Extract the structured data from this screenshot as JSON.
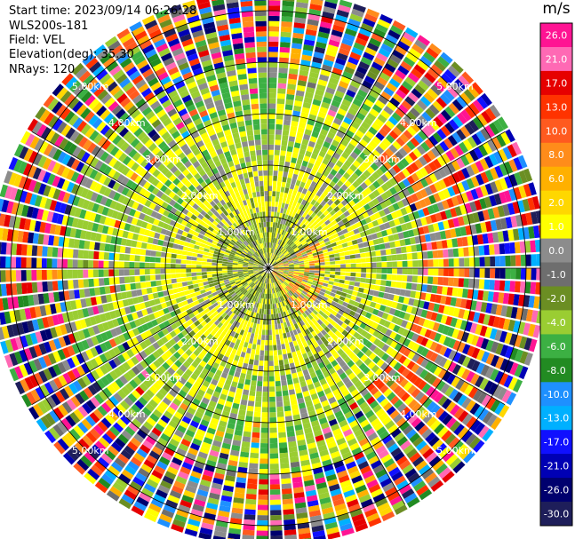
{
  "header": {
    "start_time": "Start time: 2023/09/14 06:26:28",
    "instrument": "WLS200s-181",
    "field": "Field: VEL",
    "elevation": "Elevation(deg): 35.30",
    "nrays": "NRays: 120"
  },
  "colorbar": {
    "unit": "m/s",
    "ticks": [
      "26.0",
      "21.0",
      "17.0",
      "13.0",
      "10.0",
      "8.0",
      "6.0",
      "2.0",
      "1.0",
      "0.0",
      "-1.0",
      "-2.0",
      "-4.0",
      "-6.0",
      "-8.0",
      "-10.0",
      "-13.0",
      "-17.0",
      "-21.0",
      "-26.0",
      "-30.0"
    ],
    "colors": [
      "#ff1493",
      "#ff69b4",
      "#e60000",
      "#ff3300",
      "#ff5a1f",
      "#ff8c1a",
      "#ffb000",
      "#ffd700",
      "#ffff00",
      "#8c8c8c",
      "#6e6e6e",
      "#6b8e23",
      "#9acd32",
      "#3cb043",
      "#228b22",
      "#1e90ff",
      "#00b0ff",
      "#1010ff",
      "#0000b4",
      "#00006e",
      "#1e1e5a"
    ]
  },
  "chart_data": {
    "type": "ppi",
    "field": "VEL",
    "units": "m/s",
    "n_rays": 120,
    "elevation_deg": 35.3,
    "range_rings_km": [
      1,
      2,
      3,
      4,
      5
    ],
    "ring_labels": [
      "1.00km",
      "2.00km",
      "3.00km",
      "4.00km",
      "5.00km"
    ],
    "vmin": -30,
    "vmax": 26,
    "pattern": [
      {
        "range_km": [
          0,
          1
        ],
        "description": "mixed olive / yellow near-zero velocities",
        "dominant": [
          "#6b8e23",
          "#ffff00",
          "#8c8c8c"
        ]
      },
      {
        "range_km": [
          1,
          2
        ],
        "description": "yellow positive ring with gray and olive",
        "dominant": [
          "#ffff00",
          "#8c8c8c",
          "#9acd32"
        ]
      },
      {
        "range_km": [
          2,
          3
        ],
        "description": "yellow-green band with gray patches",
        "dominant": [
          "#9acd32",
          "#ffff00",
          "#8c8c8c"
        ]
      },
      {
        "range_km": [
          3,
          4
        ],
        "description": "mixed green/yellow with orange on the east side",
        "dominant": [
          "#9acd32",
          "#3cb043",
          "#ff8c1a"
        ]
      },
      {
        "range_km": [
          4,
          5.3
        ],
        "description": "noisy multicolored outer gates",
        "dominant": [
          "all"
        ]
      }
    ]
  }
}
